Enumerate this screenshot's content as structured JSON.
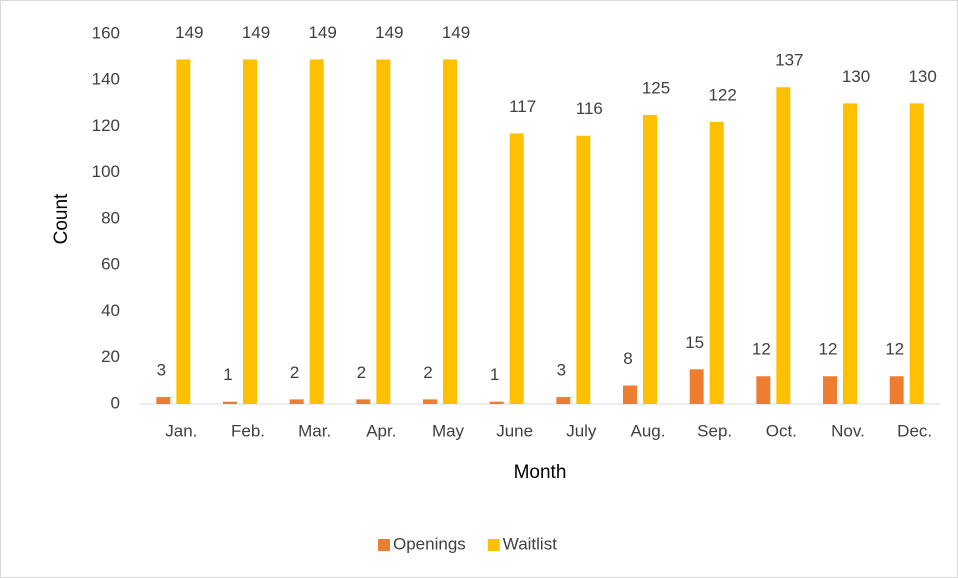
{
  "chart_data": {
    "type": "bar",
    "xlabel": "Month",
    "ylabel": "Count",
    "categories": [
      "Jan.",
      "Feb.",
      "Mar.",
      "Apr.",
      "May",
      "June",
      "July",
      "Aug.",
      "Sep.",
      "Oct.",
      "Nov.",
      "Dec."
    ],
    "series": [
      {
        "name": "Openings",
        "color": "#ED7D31",
        "values": [
          3,
          1,
          2,
          2,
          2,
          1,
          3,
          8,
          15,
          12,
          12,
          12
        ]
      },
      {
        "name": "Waitlist",
        "color": "#FFC000",
        "values": [
          149,
          149,
          149,
          149,
          149,
          117,
          116,
          125,
          122,
          137,
          130,
          130
        ]
      }
    ],
    "ylim": [
      0,
      160
    ],
    "yticks": [
      0,
      20,
      40,
      60,
      80,
      100,
      120,
      140,
      160
    ],
    "grid": false,
    "legend": "bottom"
  }
}
